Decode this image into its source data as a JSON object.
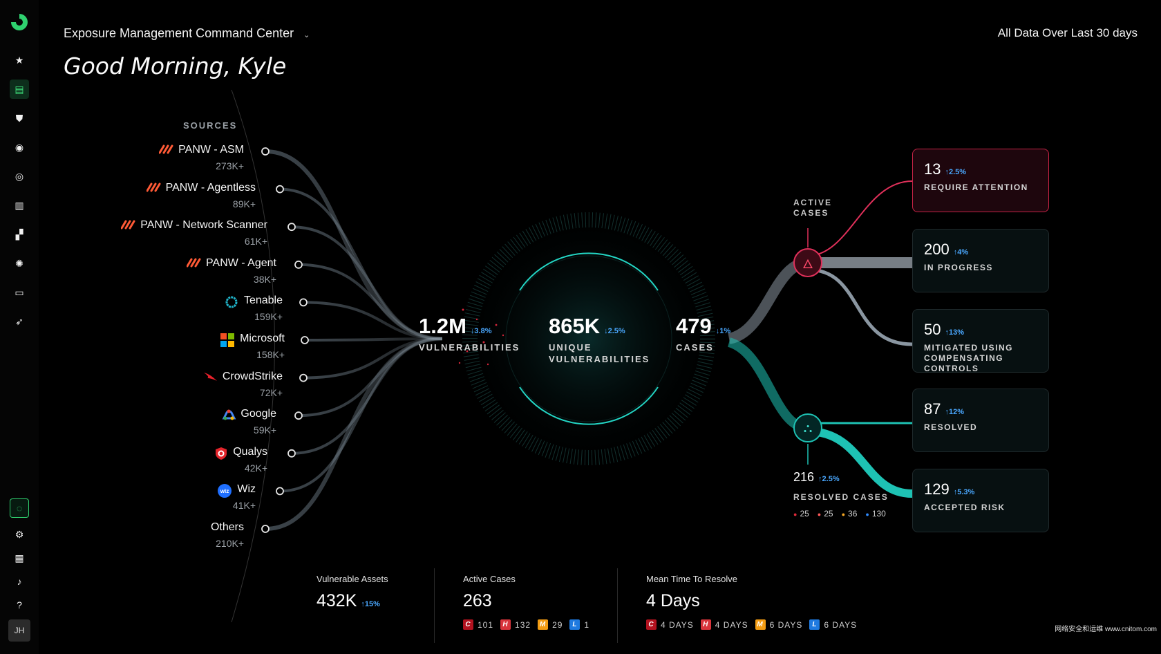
{
  "header": {
    "dashboard_title": "Exposure Management Command Center",
    "greeting": "Good Morning, Kyle",
    "time_range": "All Data Over Last 30 days"
  },
  "sidebar": {
    "items": [
      {
        "name": "favorites",
        "icon": "star-icon",
        "glyph": "★"
      },
      {
        "name": "dashboards",
        "icon": "dashboard-icon",
        "glyph": "▤",
        "active": true
      },
      {
        "name": "shield",
        "icon": "shield-icon",
        "glyph": "⛊"
      },
      {
        "name": "visibility",
        "icon": "eye-icon",
        "glyph": "◉"
      },
      {
        "name": "target",
        "icon": "target-icon",
        "glyph": "◎"
      },
      {
        "name": "reports",
        "icon": "clipboard-icon",
        "glyph": "▥"
      },
      {
        "name": "modules",
        "icon": "blocks-icon",
        "glyph": "▞"
      },
      {
        "name": "settings-gear",
        "icon": "cog-icon",
        "glyph": "✺"
      },
      {
        "name": "inbox",
        "icon": "inbox-icon",
        "glyph": "▭"
      },
      {
        "name": "automation",
        "icon": "rocket-icon",
        "glyph": "➶"
      }
    ],
    "bottom_items": [
      {
        "name": "assistant",
        "icon": "assistant-icon",
        "glyph": "◌"
      },
      {
        "name": "settings",
        "icon": "settings-icon",
        "glyph": "⚙"
      },
      {
        "name": "apps",
        "icon": "grid-icon",
        "glyph": "▦"
      },
      {
        "name": "notifications",
        "icon": "bell-icon",
        "glyph": "♪"
      },
      {
        "name": "help",
        "icon": "help-icon",
        "glyph": "?"
      }
    ],
    "avatar_initials": "JH"
  },
  "sources": {
    "title": "SOURCES",
    "items": [
      {
        "name": "PANW - ASM",
        "count": "273K+",
        "icon": "panw-icon"
      },
      {
        "name": "PANW - Agentless",
        "count": "89K+",
        "icon": "panw-icon"
      },
      {
        "name": "PANW - Network Scanner",
        "count": "61K+",
        "icon": "panw-icon"
      },
      {
        "name": "PANW - Agent",
        "count": "38K+",
        "icon": "panw-icon"
      },
      {
        "name": "Tenable",
        "count": "159K+",
        "icon": "tenable-icon"
      },
      {
        "name": "Microsoft",
        "count": "158K+",
        "icon": "microsoft-icon"
      },
      {
        "name": "CrowdStrike",
        "count": "72K+",
        "icon": "crowdstrike-icon"
      },
      {
        "name": "Google",
        "count": "59K+",
        "icon": "google-icon"
      },
      {
        "name": "Qualys",
        "count": "42K+",
        "icon": "qualys-icon"
      },
      {
        "name": "Wiz",
        "count": "41K+",
        "icon": "wiz-icon"
      },
      {
        "name": "Others",
        "count": "210K+",
        "icon": ""
      }
    ]
  },
  "metrics": {
    "vulnerabilities": {
      "value": "1.2M",
      "trend": "↓3.8%",
      "label": "VULNERABILITIES"
    },
    "unique": {
      "value": "865K",
      "trend": "↓2.5%",
      "label": "UNIQUE VULNERABILITIES"
    },
    "cases": {
      "value": "479",
      "trend": "↓1%",
      "label": "CASES"
    }
  },
  "active_cases": {
    "label": "ACTIVE CASES"
  },
  "resolved_cases": {
    "value": "216",
    "trend": "↑2.5%",
    "label": "RESOLVED CASES",
    "breakdown": [
      "25",
      "25",
      "36",
      "130"
    ]
  },
  "cards": [
    {
      "value": "13",
      "trend": "↑2.5%",
      "label": "REQUIRE ATTENTION",
      "variant": "attn"
    },
    {
      "value": "200",
      "trend": "↑4%",
      "label": "IN PROGRESS"
    },
    {
      "value": "50",
      "trend": "↑13%",
      "label": "MITIGATED USING COMPENSATING CONTROLS"
    },
    {
      "value": "87",
      "trend": "↑12%",
      "label": "RESOLVED"
    },
    {
      "value": "129",
      "trend": "↑5.3%",
      "label": "ACCEPTED RISK"
    }
  ],
  "bottom_stats": {
    "vulnerable_assets": {
      "title": "Vulnerable Assets",
      "value": "432K",
      "trend": "↑15%"
    },
    "active_cases": {
      "title": "Active Cases",
      "value": "263",
      "c": "101",
      "h": "132",
      "m": "29",
      "l": "1"
    },
    "mttr": {
      "title": "Mean Time To Resolve",
      "value": "4 Days",
      "c": "4 DAYS",
      "h": "4 DAYS",
      "m": "6 DAYS",
      "l": "6 DAYS"
    }
  },
  "severity_letters": {
    "c": "C",
    "h": "H",
    "m": "M",
    "l": "L"
  },
  "watermark": "网络安全和运维 www.cnitom.com",
  "colors": {
    "accent_green": "#2fd16f",
    "alert_red": "#e0305a",
    "resolved_teal": "#1ec2b4",
    "trend_blue": "#4aa8ff"
  }
}
